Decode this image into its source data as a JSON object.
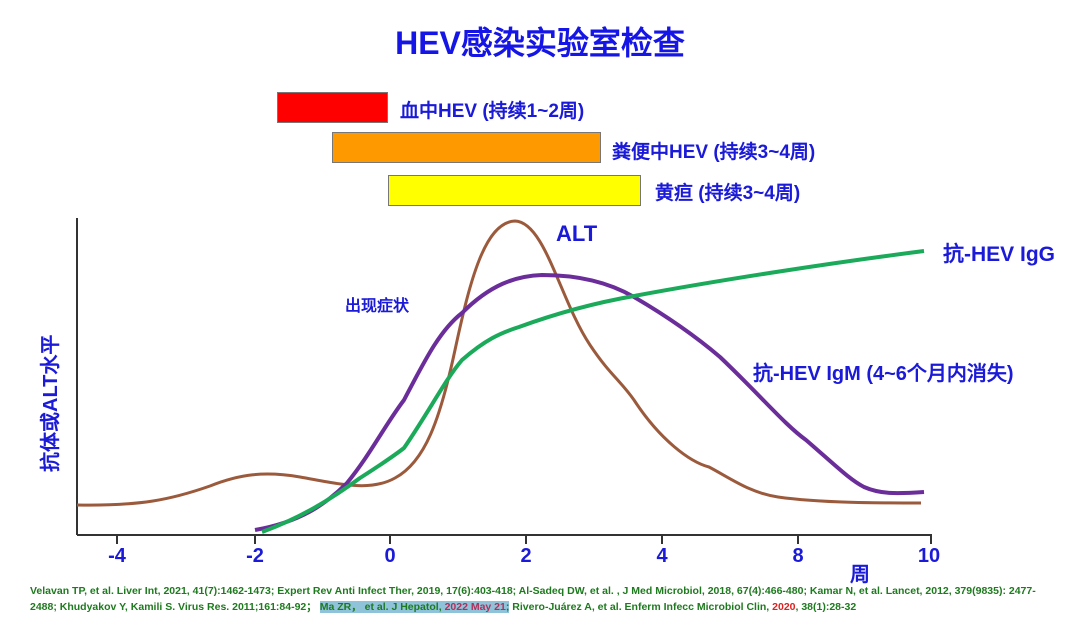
{
  "title": "HEV感染实验室检查",
  "bars": [
    {
      "label": "血中HEV (持续1~2周)",
      "color": "#ff0000"
    },
    {
      "label": "粪便中HEV (持续3~4周)",
      "color": "#ff9900"
    },
    {
      "label": "黄疸 (持续3~4周)",
      "color": "#ffff00"
    }
  ],
  "curves": {
    "alt": {
      "label": "ALT",
      "color": "#9b5a3c"
    },
    "igg": {
      "label": "抗-HEV IgG",
      "color": "#1aaa5a"
    },
    "igm": {
      "label": "抗-HEV IgM (4~6个月内消失)",
      "color": "#6a2d9a"
    }
  },
  "annotation": "出现症状",
  "y_axis_label": "抗体或ALT水平",
  "x_axis_label": "周",
  "x_ticks": [
    "-4",
    "-2",
    "0",
    "2",
    "4",
    "8",
    "10"
  ],
  "references": {
    "part1": "Velavan TP, et al. Liver Int, 2021, 41(7):1462-1473; Expert Rev Anti Infect Ther, 2019, 17(6):403-418; Al-Sadeq DW, et al. , J Med Microbiol, 2018, 67(4):466-480; Kamar N, et al. Lancet, 2012, 379(9835): 2477-2488; Khudyakov Y, Kamili S. Virus Res. 2011;161:84-92；",
    "highlight_a": "Ma ZR， et al. J Hepatol, ",
    "highlight_b": "2022 May 21",
    "highlight_c": ";",
    "part2": " Rivero-Juárez A, et al. Enferm Infecc Microbiol Clin, ",
    "year": "2020",
    "part3": ", 38(1):28-32"
  }
}
